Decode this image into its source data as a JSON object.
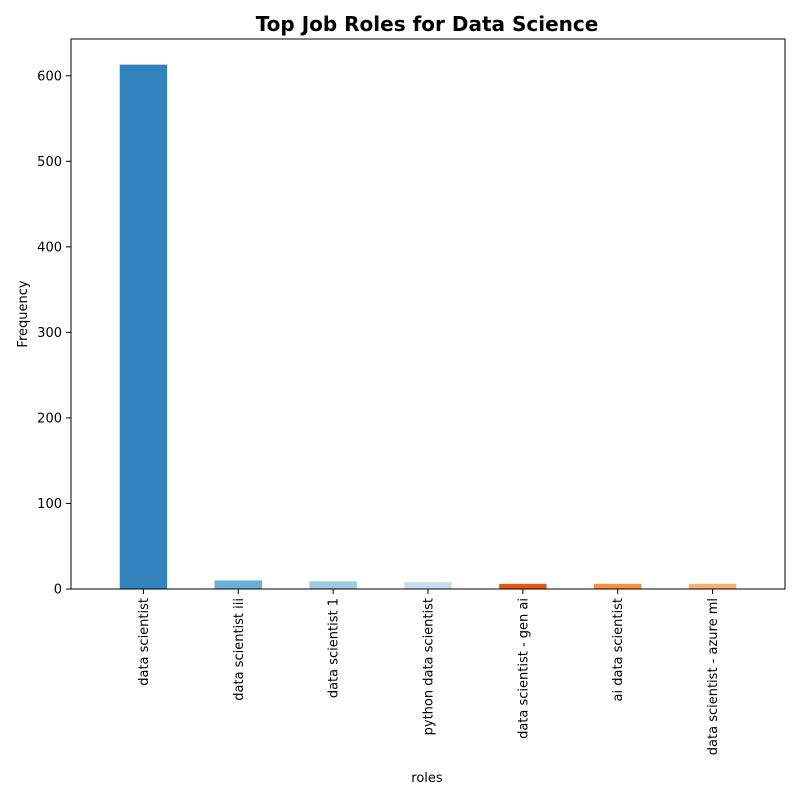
{
  "chart_data": {
    "type": "bar",
    "title": "Top Job Roles for Data Science",
    "xlabel": "roles",
    "ylabel": "Frequency",
    "categories": [
      "data scientist",
      "data scientist iii",
      "data scientist 1",
      "python data scientist",
      "data scientist - gen ai",
      "ai data scientist",
      "data scientist - azure ml"
    ],
    "values": [
      613,
      10,
      9,
      8,
      6,
      6,
      6
    ],
    "colors": [
      "#3182bd",
      "#6baed6",
      "#9ecae1",
      "#c6dbef",
      "#e6550d",
      "#fd8d3c",
      "#fdae6b"
    ],
    "ylim": [
      0,
      643
    ],
    "yticks": [
      0,
      100,
      200,
      300,
      400,
      500,
      600
    ],
    "grid": false,
    "x_tick_rotation": "vertical"
  }
}
